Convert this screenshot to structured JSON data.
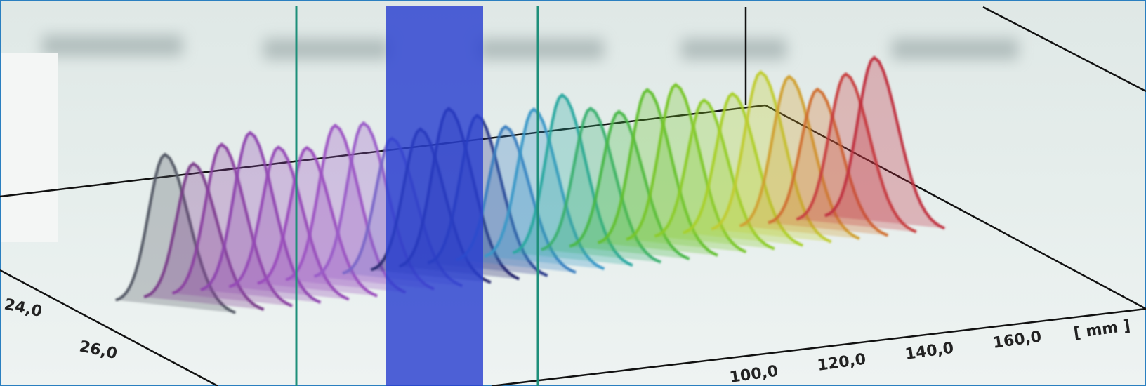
{
  "axes": {
    "depth_ticks": [
      "24,0",
      "26,0"
    ],
    "x_ticks": [
      "100,0",
      "120,0",
      "140,0",
      "160,0"
    ],
    "x_unit": "[ mm ]"
  }
}
